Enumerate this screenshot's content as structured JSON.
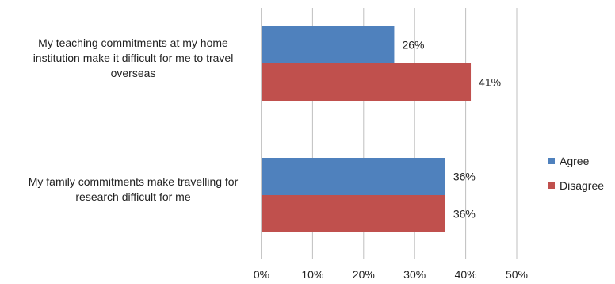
{
  "chart_data": {
    "type": "bar",
    "orientation": "horizontal",
    "categories": [
      "My teaching commitments at my home institution make it difficult for me to travel overseas",
      "My family commitments make travelling for research difficult for me"
    ],
    "series": [
      {
        "name": "Agree",
        "values": [
          26,
          36
        ],
        "labels": [
          "26%",
          "36%"
        ],
        "color": "#4f81bd"
      },
      {
        "name": "Disagree",
        "values": [
          41,
          36
        ],
        "labels": [
          "41%",
          "36%"
        ],
        "color": "#c0504d"
      }
    ],
    "xlim": [
      0,
      50
    ],
    "xticks": [
      "0%",
      "10%",
      "20%",
      "30%",
      "40%",
      "50%"
    ],
    "grid": true,
    "legend_position": "right"
  }
}
